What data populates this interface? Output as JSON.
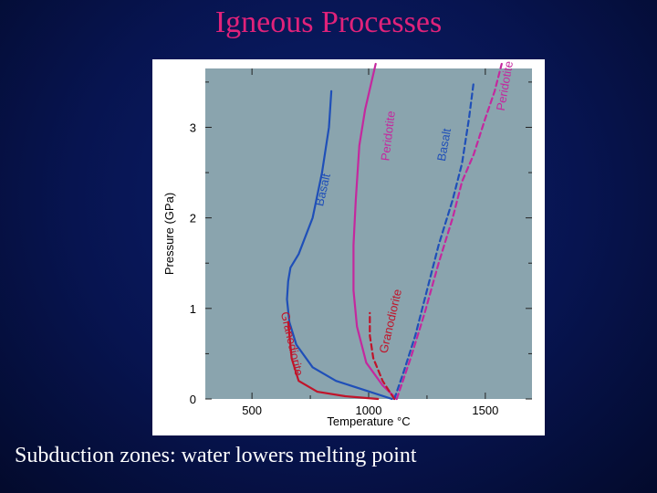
{
  "slide": {
    "title": "Igneous Processes",
    "caption": "Subduction zones: water lowers melting point"
  },
  "colors": {
    "background": "#071450",
    "title": "#e0227a",
    "caption": "#ffffff",
    "plot_bg": "#8aa4ae",
    "basalt": "#1f4fb8",
    "peridotite": "#c4289e",
    "granodiorite": "#c0142a"
  },
  "chart_data": {
    "type": "line",
    "title": "",
    "xlabel": "Temperature °C",
    "ylabel": "Pressure (GPa)",
    "xlim": [
      300,
      1700
    ],
    "ylim": [
      0,
      3.65
    ],
    "xticks": [
      500,
      1000,
      1500
    ],
    "yticks": [
      0,
      1,
      2,
      3
    ],
    "grid": false,
    "series": [
      {
        "name": "Basalt",
        "style": "solid",
        "color_key": "basalt",
        "label_at": [
          820,
          2.3
        ],
        "label_rotation": -77,
        "points": [
          [
            1100,
            0.0
          ],
          [
            980,
            0.1
          ],
          [
            860,
            0.2
          ],
          [
            760,
            0.35
          ],
          [
            690,
            0.6
          ],
          [
            660,
            0.85
          ],
          [
            650,
            1.1
          ],
          [
            655,
            1.3
          ],
          [
            665,
            1.45
          ],
          [
            700,
            1.6
          ],
          [
            760,
            2.0
          ],
          [
            800,
            2.5
          ],
          [
            830,
            3.0
          ],
          [
            840,
            3.4
          ]
        ]
      },
      {
        "name": "Peridotite",
        "style": "solid",
        "color_key": "peridotite",
        "label_at": [
          1100,
          2.9
        ],
        "label_rotation": -83,
        "points": [
          [
            1120,
            0.0
          ],
          [
            1060,
            0.15
          ],
          [
            990,
            0.4
          ],
          [
            950,
            0.8
          ],
          [
            935,
            1.2
          ],
          [
            935,
            1.7
          ],
          [
            945,
            2.2
          ],
          [
            960,
            2.8
          ],
          [
            985,
            3.2
          ],
          [
            1030,
            3.7
          ]
        ]
      },
      {
        "name": "Granodiorite",
        "style": "solid",
        "color_key": "granodiorite",
        "label_at": [
          655,
          0.6
        ],
        "label_rotation": 77,
        "points": [
          [
            1040,
            0.0
          ],
          [
            900,
            0.03
          ],
          [
            780,
            0.08
          ],
          [
            700,
            0.2
          ],
          [
            670,
            0.45
          ],
          [
            655,
            0.85
          ]
        ]
      },
      {
        "name": "Basalt",
        "style": "dashed",
        "color_key": "basalt",
        "label_at": [
          1340,
          2.8
        ],
        "label_rotation": -80,
        "points": [
          [
            1110,
            0.0
          ],
          [
            1150,
            0.3
          ],
          [
            1200,
            0.7
          ],
          [
            1250,
            1.2
          ],
          [
            1300,
            1.7
          ],
          [
            1360,
            2.2
          ],
          [
            1400,
            2.6
          ],
          [
            1430,
            3.1
          ],
          [
            1450,
            3.5
          ]
        ]
      },
      {
        "name": "Peridotite",
        "style": "dashed",
        "color_key": "peridotite",
        "label_at": [
          1600,
          3.45
        ],
        "label_rotation": -80,
        "points": [
          [
            1120,
            0.0
          ],
          [
            1180,
            0.45
          ],
          [
            1240,
            0.95
          ],
          [
            1300,
            1.5
          ],
          [
            1360,
            2.0
          ],
          [
            1400,
            2.4
          ],
          [
            1450,
            2.7
          ],
          [
            1500,
            3.1
          ],
          [
            1540,
            3.4
          ],
          [
            1570,
            3.7
          ]
        ]
      },
      {
        "name": "Granodiorite",
        "style": "dashed",
        "color_key": "granodiorite",
        "label_at": [
          1110,
          0.85
        ],
        "label_rotation": -77,
        "points": [
          [
            1110,
            0.0
          ],
          [
            1060,
            0.2
          ],
          [
            1020,
            0.45
          ],
          [
            1005,
            0.7
          ],
          [
            1005,
            0.95
          ]
        ]
      }
    ]
  }
}
